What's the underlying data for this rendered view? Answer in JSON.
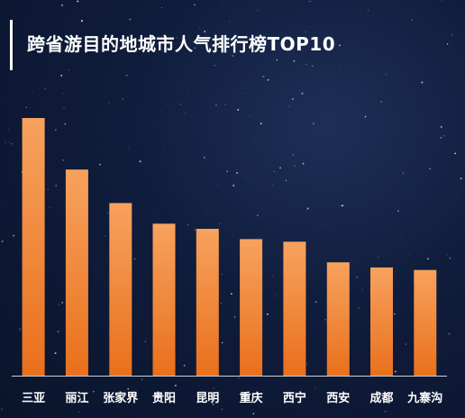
{
  "title": "跨省游目的地城市人气排行榜TOP10",
  "colors": {
    "background": "#0f1c3b",
    "bar_top": "#f7a25e",
    "bar_bottom": "#e9701c",
    "axis": "#ffffff",
    "text": "#ffffff"
  },
  "chart_data": {
    "type": "bar",
    "categories": [
      "三亚",
      "丽江",
      "张家界",
      "贵阳",
      "昆明",
      "重庆",
      "西宁",
      "西安",
      "成都",
      "九寨沟"
    ],
    "values": [
      100,
      80,
      67,
      59,
      57,
      53,
      52,
      44,
      42,
      41
    ],
    "title": "跨省游目的地城市人气排行榜TOP10",
    "xlabel": "",
    "ylabel": "",
    "ylim": [
      0,
      100
    ],
    "grid": false,
    "legend": "none"
  }
}
